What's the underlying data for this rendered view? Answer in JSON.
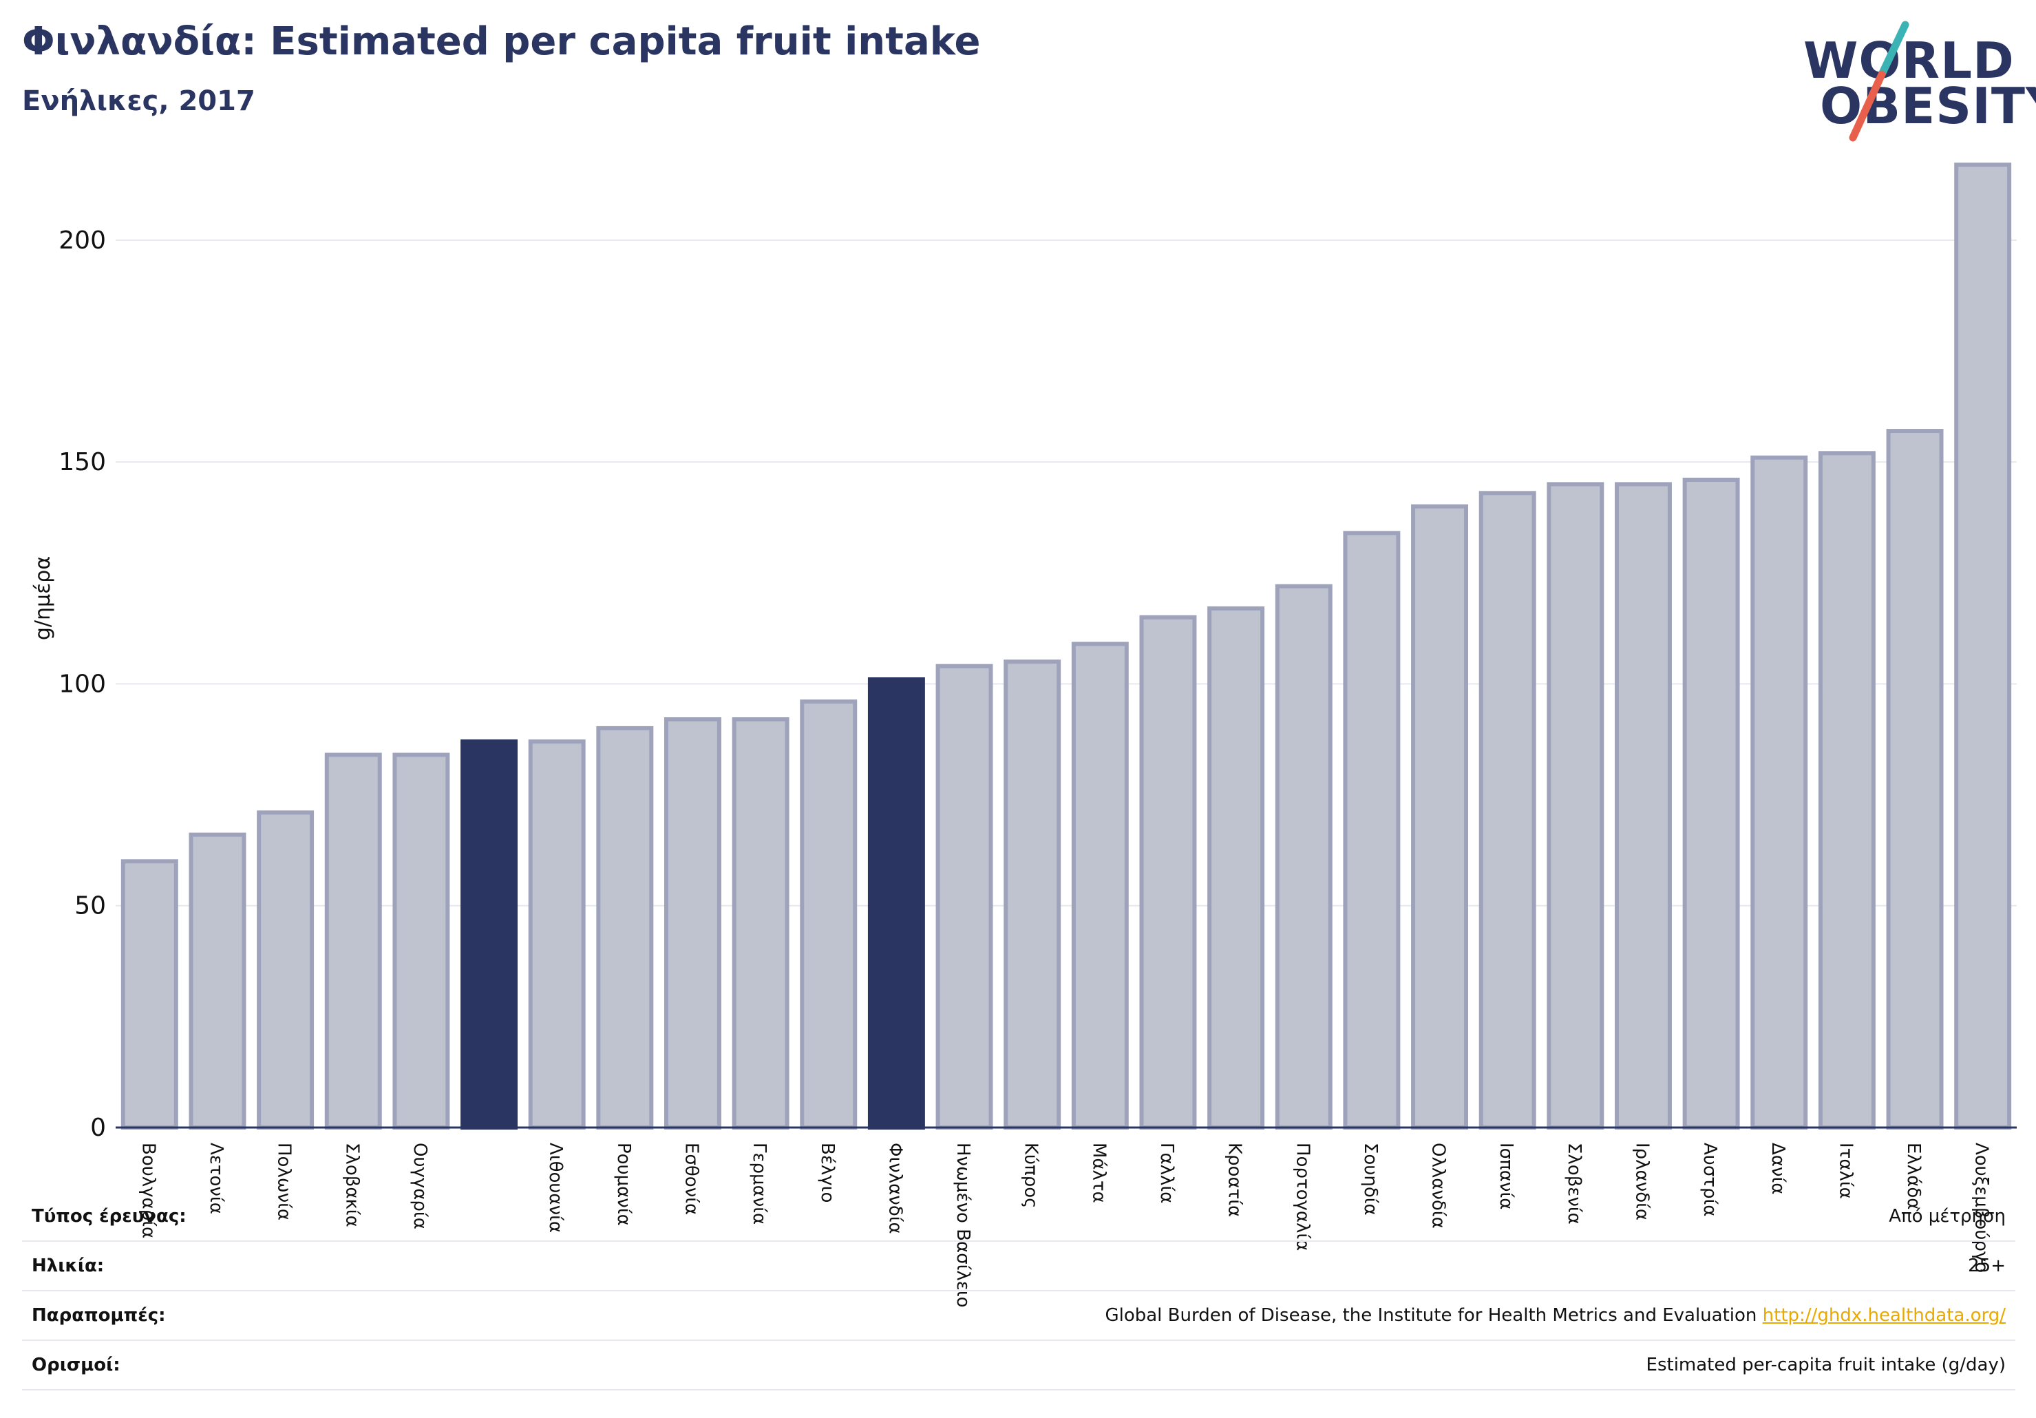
{
  "header": {
    "title": "Φινλανδία: Estimated per capita fruit intake",
    "subtitle": "Ενήλικες, 2017"
  },
  "logo": {
    "line1": "WORLD",
    "line2": "OBESITY",
    "slash_color_top": "#3bb3b5",
    "slash_color_bottom": "#e8604c"
  },
  "colors": {
    "bar_default": "#bfc2cf",
    "bar_default_edge": "#9ea3bb",
    "bar_highlight": "#2a3561",
    "axis": "#2a3561",
    "grid": "#e6e8ef"
  },
  "chart_data": {
    "type": "bar",
    "title": "Φινλανδία: Estimated per capita fruit intake",
    "subtitle": "Ενήλικες, 2017",
    "ylabel": "g/ημέρα",
    "xlabel": "",
    "ylim": [
      0,
      220
    ],
    "yticks": [
      0,
      50,
      100,
      150,
      200
    ],
    "grid": true,
    "categories": [
      "Βουλγαρία",
      "Λετονία",
      "Πολωνία",
      "Σλοβακία",
      "Ουγγαρία",
      "",
      "Λιθουανία",
      "Ρουμανία",
      "Εσθονία",
      "Γερμανία",
      "Βέλγιο",
      "Φινλανδία",
      "Ηνωμένο Βασίλειο",
      "Κύπρος",
      "Μάλτα",
      "Γαλλία",
      "Κροατία",
      "Πορτογαλία",
      "Σουηδία",
      "Ολλανδία",
      "Ισπανία",
      "Σλοβενία",
      "Ιρλανδία",
      "Αυστρία",
      "Δανία",
      "Ιταλία",
      "Ελλάδα",
      "Λουξεμβούργο"
    ],
    "values": [
      60,
      66,
      71,
      84,
      84,
      87,
      87,
      90,
      92,
      92,
      96,
      101,
      104,
      105,
      109,
      115,
      117,
      122,
      134,
      140,
      143,
      145,
      145,
      146,
      151,
      152,
      157,
      217
    ],
    "highlighted": [
      5,
      11
    ]
  },
  "info": [
    {
      "key": "Τύπος έρευνας:",
      "value": "Από μέτρηση",
      "link": ""
    },
    {
      "key": "Ηλικία:",
      "value": "25+",
      "link": ""
    },
    {
      "key": "Παραπομπές:",
      "value": "Global Burden of Disease, the Institute for Health Metrics and Evaluation",
      "link": "http://ghdx.healthdata.org/"
    },
    {
      "key": "Ορισμοί:",
      "value": "Estimated per-capita fruit intake (g/day)",
      "link": ""
    }
  ]
}
